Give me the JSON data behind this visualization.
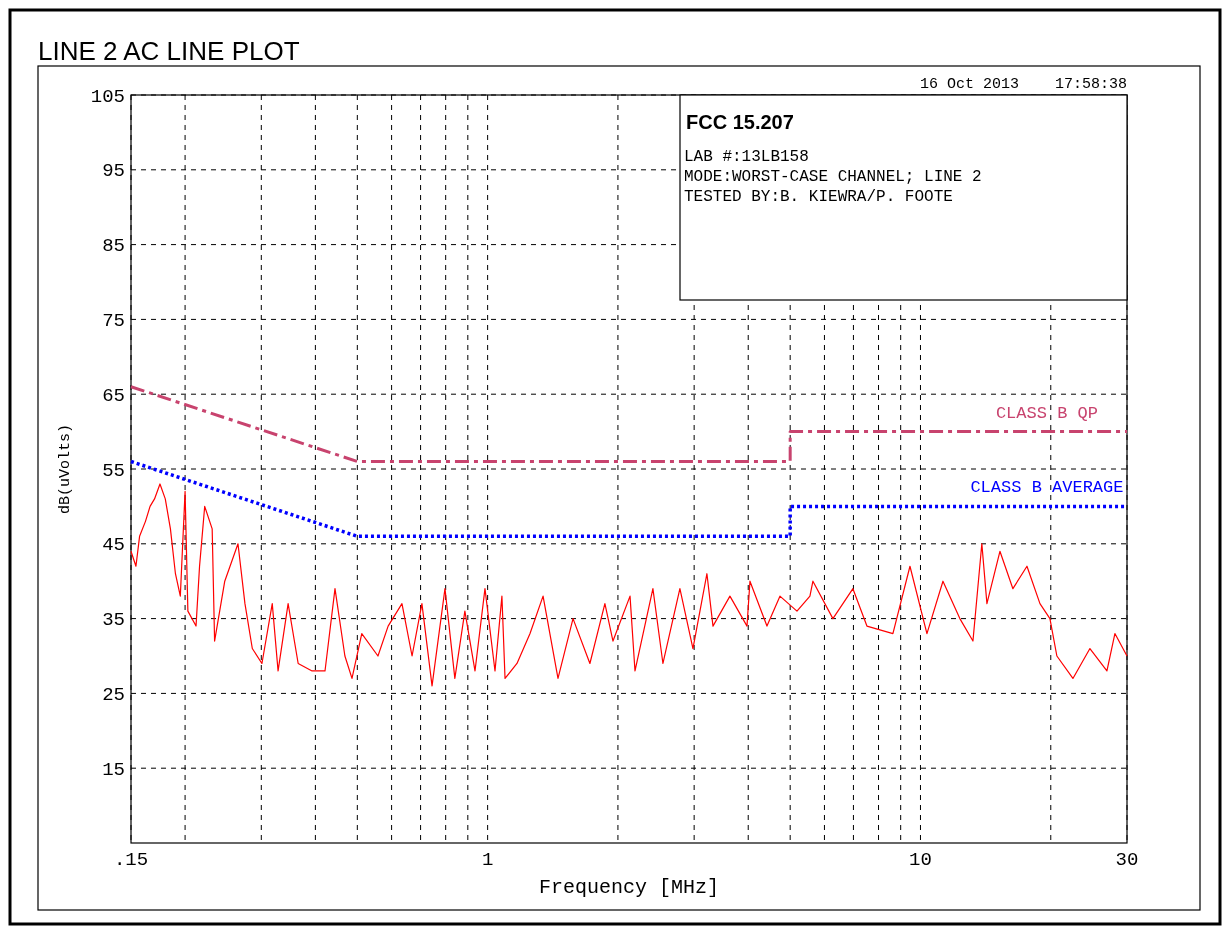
{
  "chart_data": {
    "type": "line",
    "title": "LINE 2 AC LINE PLOT",
    "xlabel": "Frequency [MHz]",
    "ylabel": "dB(uVolts)",
    "log": "x",
    "grid": true,
    "marker": "none",
    "xlim": [
      0.15,
      30
    ],
    "ylim": [
      5,
      105
    ],
    "xticks": [
      {
        "value": 0.15,
        "label": ".15"
      },
      {
        "value": 0.2,
        "label": null
      },
      {
        "value": 0.3,
        "label": null
      },
      {
        "value": 0.4,
        "label": null
      },
      {
        "value": 0.5,
        "label": null
      },
      {
        "value": 0.6,
        "label": null
      },
      {
        "value": 0.7,
        "label": null
      },
      {
        "value": 0.8,
        "label": null
      },
      {
        "value": 0.9,
        "label": null
      },
      1,
      {
        "value": 2,
        "label": null
      },
      {
        "value": 3,
        "label": null
      },
      {
        "value": 4,
        "label": null
      },
      {
        "value": 5,
        "label": null
      },
      {
        "value": 6,
        "label": null
      },
      {
        "value": 7,
        "label": null
      },
      {
        "value": 8,
        "label": null
      },
      {
        "value": 9,
        "label": null
      },
      10,
      {
        "value": 20,
        "label": null
      },
      30
    ],
    "yticks": [
      15,
      25,
      35,
      45,
      55,
      65,
      75,
      85,
      95,
      105
    ],
    "annotations": [
      "16 Oct 2013    17:58:38",
      "FCC 15.207",
      "LAB #:13LB158",
      "MODE:WORST-CASE CHANNEL; LINE 2",
      "TESTED BY:B. KIEWRA/P. FOOTE"
    ],
    "series": [
      {
        "color": "#ff0000",
        "line_style": "solid",
        "x": [
          0.15,
          0.154,
          0.157,
          0.162,
          0.166,
          0.17,
          0.175,
          0.18,
          0.185,
          0.19,
          0.195,
          0.2,
          0.203,
          0.212,
          0.216,
          0.222,
          0.231,
          0.234,
          0.247,
          0.265,
          0.275,
          0.286,
          0.301,
          0.318,
          0.328,
          0.346,
          0.365,
          0.393,
          0.421,
          0.444,
          0.468,
          0.486,
          0.512,
          0.558,
          0.589,
          0.634,
          0.669,
          0.705,
          0.744,
          0.797,
          0.84,
          0.886,
          0.935,
          0.986,
          1.04,
          1.079,
          1.097,
          1.169,
          1.253,
          1.343,
          1.454,
          1.575,
          1.723,
          1.866,
          1.948,
          2.133,
          2.19,
          2.409,
          2.541,
          2.781,
          2.981,
          3.211,
          3.316,
          3.629,
          3.974,
          4.037,
          4.419,
          4.735,
          5.184,
          5.554,
          5.643,
          6.276,
          6.981,
          7.521,
          8.636,
          9.456,
          10.35,
          11.27,
          12.33,
          13.22,
          13.86,
          14.24,
          15.26,
          16.35,
          17.62,
          18.88,
          19.91,
          20.66,
          22.5,
          24.63,
          26.96,
          28.13,
          30
        ],
        "values": [
          44,
          42,
          46,
          48,
          50,
          51,
          53,
          51,
          47,
          41,
          38,
          52,
          36,
          34,
          42,
          50,
          47,
          32,
          40,
          45,
          37,
          31,
          29,
          37,
          28,
          37,
          29,
          28,
          28,
          39,
          30,
          27,
          33,
          30,
          34,
          37,
          30,
          37,
          26,
          39,
          27,
          36,
          28,
          39,
          28,
          38,
          27,
          29,
          33,
          38,
          27,
          35,
          29,
          37,
          32,
          38,
          28,
          39,
          29,
          39,
          31,
          41,
          34,
          38,
          34,
          40,
          34,
          38,
          36,
          38,
          40,
          35,
          39,
          34,
          33,
          42,
          33,
          40,
          35,
          32,
          45,
          37,
          44,
          39,
          42,
          37,
          35,
          30,
          27,
          31,
          28,
          33,
          30
        ]
      },
      {
        "name": "CLASS B QP",
        "color": "#c8436e",
        "line_style": "dashed",
        "x": [
          0.15,
          0.5,
          5,
          5,
          30
        ],
        "values": [
          66,
          56,
          56,
          60,
          60
        ]
      },
      {
        "name": "CLASS B AVERAGE",
        "color": "#0000ff",
        "line_style": "dotted",
        "x": [
          0.15,
          0.5,
          5,
          5,
          30
        ],
        "values": [
          56,
          46,
          46,
          50,
          50
        ]
      }
    ]
  }
}
